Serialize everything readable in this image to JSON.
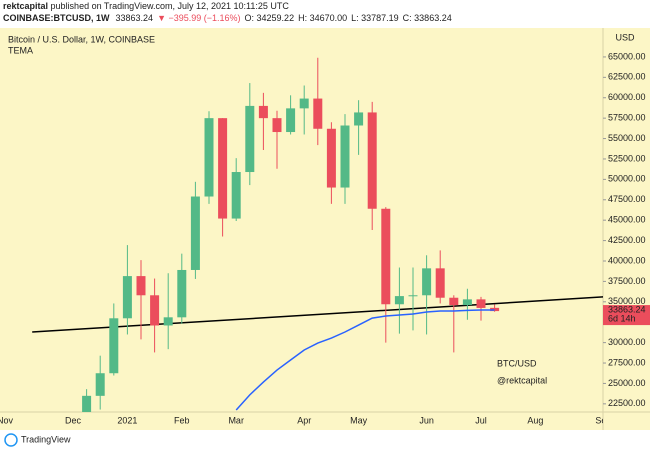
{
  "header": {
    "publisher": "rektcapital",
    "published": "published on TradingView.com, July 12, 2021 10:11:25 UTC",
    "symbol": "COINBASE:BTCUSD, 1W",
    "last": "33863.24",
    "change": "▼ −395.99 (−1.16%)",
    "ohlc": [
      "O: 34259.22",
      "H: 34670.00",
      "L: 33787.19",
      "C: 33863.24"
    ]
  },
  "chart_data": {
    "type": "candlestick",
    "title": "Bitcoin / U.S. Dollar, 1W, COINBASE",
    "y_unit": "USD",
    "categories": [
      "Nov",
      null,
      null,
      null,
      null,
      "Dec",
      null,
      null,
      null,
      "2021",
      null,
      null,
      null,
      "Feb",
      null,
      null,
      null,
      "Mar",
      null,
      null,
      null,
      null,
      "Apr",
      null,
      null,
      null,
      "May",
      null,
      null,
      null,
      null,
      "Jun",
      null,
      null,
      null,
      "Jul",
      null,
      null,
      null,
      "Aug",
      null,
      null,
      null,
      null,
      "Sep"
    ],
    "open": [
      null,
      null,
      null,
      null,
      null,
      null,
      19270,
      23480,
      26250,
      32980,
      38150,
      35800,
      32100,
      33100,
      38900,
      47900,
      57500,
      45200,
      50900,
      59000,
      57500,
      55800,
      58700,
      59900,
      56200,
      49000,
      56600,
      58200,
      46400,
      34700,
      35700,
      35800,
      39100,
      35500,
      34600,
      35300,
      34259.22,
      null,
      null,
      null,
      null,
      null,
      null,
      null,
      null
    ],
    "high": [
      null,
      null,
      null,
      null,
      null,
      null,
      24300,
      28400,
      34800,
      41950,
      40100,
      37850,
      38500,
      40900,
      49700,
      58350,
      57500,
      52600,
      61800,
      60600,
      58400,
      60300,
      61500,
      64900,
      57000,
      58000,
      59700,
      59500,
      46600,
      39200,
      39200,
      40700,
      41300,
      35800,
      36600,
      35600,
      34670,
      null,
      null,
      null,
      null,
      null,
      null,
      null,
      null
    ],
    "low": [
      null,
      null,
      null,
      null,
      null,
      null,
      19000,
      21800,
      25970,
      31000,
      30400,
      28800,
      29200,
      32300,
      37800,
      47000,
      43000,
      44900,
      49300,
      53600,
      51300,
      55500,
      55500,
      54200,
      47000,
      47000,
      53000,
      43800,
      30000,
      31100,
      31500,
      31000,
      34800,
      28800,
      32800,
      32700,
      33787.19,
      null,
      null,
      null,
      null,
      null,
      null,
      null,
      null
    ],
    "close": [
      null,
      null,
      null,
      null,
      null,
      null,
      23480,
      26250,
      32980,
      38150,
      35800,
      32100,
      33100,
      38900,
      47900,
      57500,
      45200,
      50900,
      59000,
      57500,
      55800,
      58700,
      59900,
      56200,
      49000,
      56600,
      58200,
      46400,
      34700,
      35700,
      35800,
      39100,
      35500,
      34600,
      35300,
      34250,
      33863.24,
      null,
      null,
      null,
      null,
      null,
      null,
      null,
      null
    ],
    "up_color": "#53b987",
    "down_color": "#eb4d5c",
    "tema": {
      "name": "TEMA",
      "color": "#2962ff",
      "values": [
        null,
        null,
        null,
        null,
        null,
        null,
        null,
        null,
        null,
        null,
        null,
        null,
        null,
        null,
        null,
        null,
        null,
        21740,
        23600,
        25170,
        26640,
        27870,
        29100,
        29950,
        30560,
        31300,
        32150,
        33000,
        33260,
        33380,
        33500,
        33750,
        33870,
        33870,
        33950,
        34000,
        34000,
        null,
        null,
        null,
        null,
        null,
        null,
        null,
        null
      ]
    },
    "trend_line": {
      "color": "#000000",
      "values": [
        31300,
        35600
      ]
    },
    "ylim": [
      21500,
      68300
    ],
    "yticks": [
      {
        "value": 22500,
        "label": "22500.00"
      },
      {
        "value": 25000,
        "label": "25000.00"
      },
      {
        "value": 27500,
        "label": "27500.00"
      },
      {
        "value": 30000,
        "label": "30000.00"
      },
      {
        "value": 35000,
        "label": "35000.00"
      },
      {
        "value": 37500,
        "label": "37500.00"
      },
      {
        "value": 40000,
        "label": "40000.00"
      },
      {
        "value": 42500,
        "label": "42500.00"
      },
      {
        "value": 45000,
        "label": "45000.00"
      },
      {
        "value": 47500,
        "label": "47500.00"
      },
      {
        "value": 50000,
        "label": "50000.00"
      },
      {
        "value": 52500,
        "label": "52500.00"
      },
      {
        "value": 55000,
        "label": "55000.00"
      },
      {
        "value": 57500,
        "label": "57500.00"
      },
      {
        "value": 60000,
        "label": "60000.00"
      },
      {
        "value": 62500,
        "label": "62500.00"
      },
      {
        "value": 65000,
        "label": "65000.00"
      }
    ],
    "last_price_label": "33863.24",
    "countdown": "6d 14h",
    "annotations": [
      "BTC/USD",
      "@rektcapital"
    ]
  },
  "footer": {
    "brand": "TradingView"
  }
}
